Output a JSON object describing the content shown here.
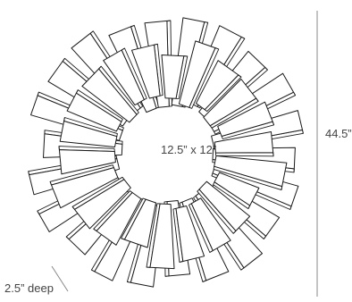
{
  "dimensions": {
    "height_label": "44.5”",
    "inner_opening_label": "12.5” x 12”",
    "depth_label": "2.5” deep"
  },
  "colors": {
    "line": "#1a1a1a",
    "fill": "#ffffff",
    "dim_line": "#888888",
    "text": "#444444"
  },
  "figure": {
    "object": "sunburst-wall-mirror-line-drawing",
    "slat_count": 44
  }
}
